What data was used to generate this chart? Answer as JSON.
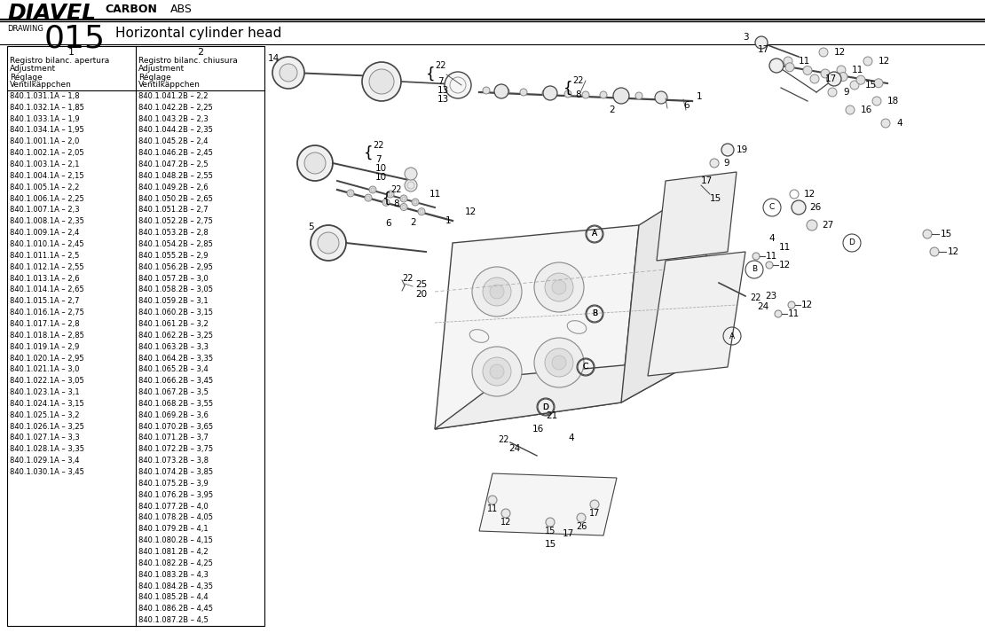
{
  "title_brand": "DIAVEL",
  "title_carbon": "CARBON",
  "title_abs": "ABS",
  "drawing_label": "DRAWING",
  "drawing_number": "015",
  "drawing_title": "Horizontal cylinder head",
  "bg_color": "#ffffff",
  "table_col1_header_num": "1",
  "table_col2_header_num": "2",
  "table_col1_header_line1": "Registro bilanc. apertura",
  "table_col1_header_line2": "Adjustment",
  "table_col1_header_line3": "Réglage",
  "table_col1_header_line4": "Ventilkäppchen",
  "table_col2_header_line1": "Registro bilanc. chiusura",
  "table_col2_header_line2": "Adjustment",
  "table_col2_header_line3": "Réglage",
  "table_col2_header_line4": "Ventilkäppchen",
  "col1_data": [
    "840.1.031.1A – 1,8",
    "840.1.032.1A – 1,85",
    "840.1.033.1A – 1,9",
    "840.1.034.1A – 1,95",
    "840.1.001.1A – 2,0",
    "840.1.002.1A – 2,05",
    "840.1.003.1A – 2,1",
    "840.1.004.1A – 2,15",
    "840.1.005.1A – 2,2",
    "840.1.006.1A – 2,25",
    "840.1.007.1A – 2,3",
    "840.1.008.1A – 2,35",
    "840.1.009.1A – 2,4",
    "840.1.010.1A – 2,45",
    "840.1.011.1A – 2,5",
    "840.1.012.1A – 2,55",
    "840.1.013.1A – 2,6",
    "840.1.014.1A – 2,65",
    "840.1.015.1A – 2,7",
    "840.1.016.1A – 2,75",
    "840.1.017.1A – 2,8",
    "840.1.018.1A – 2,85",
    "840.1.019.1A – 2,9",
    "840.1.020.1A – 2,95",
    "840.1.021.1A – 3,0",
    "840.1.022.1A – 3,05",
    "840.1.023.1A – 3,1",
    "840.1.024.1A – 3,15",
    "840.1.025.1A – 3,2",
    "840.1.026.1A – 3,25",
    "840.1.027.1A – 3,3",
    "840.1.028.1A – 3,35",
    "840.1.029.1A – 3,4",
    "840.1.030.1A – 3,45"
  ],
  "col2_data": [
    "840.1.041.2B – 2,2",
    "840.1.042.2B – 2,25",
    "840.1.043.2B – 2,3",
    "840.1.044.2B – 2,35",
    "840.1.045.2B – 2,4",
    "840.1.046.2B – 2,45",
    "840.1.047.2B – 2,5",
    "840.1.048.2B – 2,55",
    "840.1.049.2B – 2,6",
    "840.1.050.2B – 2,65",
    "840.1.051.2B – 2,7",
    "840.1.052.2B – 2,75",
    "840.1.053.2B – 2,8",
    "840.1.054.2B – 2,85",
    "840.1.055.2B – 2,9",
    "840.1.056.2B – 2,95",
    "840.1.057.2B – 3,0",
    "840.1.058.2B – 3,05",
    "840.1.059.2B – 3,1",
    "840.1.060.2B – 3,15",
    "840.1.061.2B – 3,2",
    "840.1.062.2B – 3,25",
    "840.1.063.2B – 3,3",
    "840.1.064.2B – 3,35",
    "840.1.065.2B – 3,4",
    "840.1.066.2B – 3,45",
    "840.1.067.2B – 3,5",
    "840.1.068.2B – 3,55",
    "840.1.069.2B – 3,6",
    "840.1.070.2B – 3,65",
    "840.1.071.2B – 3,7",
    "840.1.072.2B – 3,75",
    "840.1.073.2B – 3,8",
    "840.1.074.2B – 3,85",
    "840.1.075.2B – 3,9",
    "840.1.076.2B – 3,95",
    "840.1.077.2B – 4,0",
    "840.1.078.2B – 4,05",
    "840.1.079.2B – 4,1",
    "840.1.080.2B – 4,15",
    "840.1.081.2B – 4,2",
    "840.1.082.2B – 4,25",
    "840.1.083.2B – 4,3",
    "840.1.084.2B – 4,35",
    "840.1.085.2B – 4,4",
    "840.1.086.2B – 4,45",
    "840.1.087.2B – 4,5"
  ],
  "table_font_size": 6.0,
  "header_font_size": 6.5,
  "num_header_font_size": 8.0,
  "title_font_size": 18,
  "carbon_font_size": 9,
  "abs_font_size": 9,
  "drawing_num_font_size": 26,
  "drawing_label_font_size": 6,
  "drawing_title_font_size": 11,
  "line_color": "#000000",
  "text_color": "#000000",
  "diagram_line_color": "#444444",
  "diagram_light_color": "#888888"
}
